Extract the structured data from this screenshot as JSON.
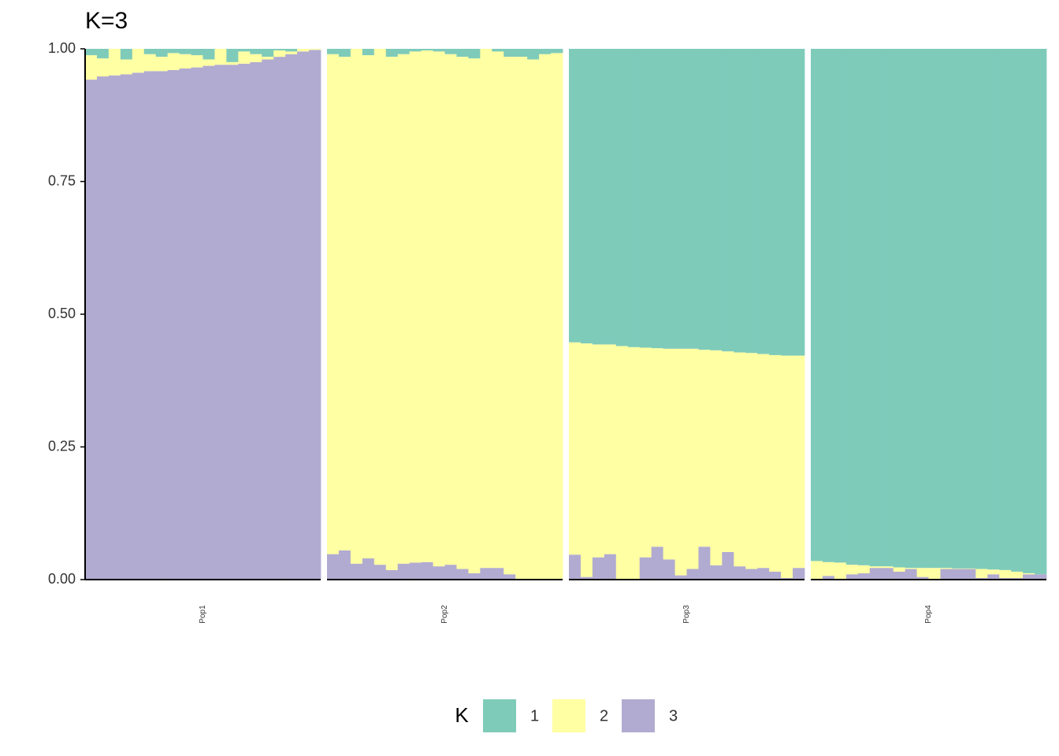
{
  "chart_data": {
    "type": "bar",
    "stacked": true,
    "title": "K=3",
    "legend_title": "K",
    "ylim": [
      0,
      1
    ],
    "yticks": [
      {
        "value": 0,
        "label": "0.00"
      },
      {
        "value": 0.25,
        "label": "0.25"
      },
      {
        "value": 0.5,
        "label": "0.50"
      },
      {
        "value": 0.75,
        "label": "0.75"
      },
      {
        "value": 1,
        "label": "1.00"
      }
    ],
    "series": [
      {
        "name": "1",
        "color": "#7fcbba"
      },
      {
        "name": "2",
        "color": "#ffffa3"
      },
      {
        "name": "3",
        "color": "#b1abd1"
      }
    ],
    "facets": [
      {
        "label": "Pop1",
        "series": [
          {
            "values": [
              0.012,
              0.018,
              0,
              0.02,
              0,
              0.01,
              0.015,
              0.008,
              0.01,
              0.012,
              0.02,
              0,
              0.025,
              0.005,
              0.01,
              0.015,
              0.003,
              0.005,
              0,
              0
            ]
          },
          {
            "values": [
              0.046,
              0.034,
              0.05,
              0.028,
              0.045,
              0.032,
              0.027,
              0.032,
              0.027,
              0.023,
              0.012,
              0.03,
              0.005,
              0.023,
              0.015,
              0.005,
              0.012,
              0.005,
              0.005,
              0.002
            ]
          },
          {
            "values": [
              0.942,
              0.948,
              0.95,
              0.952,
              0.955,
              0.958,
              0.958,
              0.96,
              0.963,
              0.965,
              0.968,
              0.97,
              0.97,
              0.972,
              0.975,
              0.98,
              0.985,
              0.99,
              0.995,
              0.998
            ]
          }
        ]
      },
      {
        "label": "Pop2",
        "series": [
          {
            "values": [
              0.01,
              0.015,
              0,
              0.012,
              0,
              0.015,
              0.01,
              0.005,
              0.003,
              0.005,
              0.01,
              0.015,
              0.018,
              0,
              0.005,
              0.015,
              0.015,
              0.02,
              0.01,
              0.008
            ]
          },
          {
            "values": [
              0.942,
              0.93,
              0.97,
              0.948,
              0.972,
              0.967,
              0.96,
              0.963,
              0.964,
              0.97,
              0.962,
              0.965,
              0.97,
              0.978,
              0.973,
              0.975,
              0.985,
              0.98,
              0.99,
              0.992
            ]
          },
          {
            "values": [
              0.048,
              0.055,
              0.03,
              0.04,
              0.028,
              0.018,
              0.03,
              0.032,
              0.033,
              0.025,
              0.028,
              0.02,
              0.012,
              0.022,
              0.022,
              0.01,
              0,
              0,
              0,
              0
            ]
          }
        ]
      },
      {
        "label": "Pop3",
        "series": [
          {
            "values": [
              0.553,
              0.555,
              0.557,
              0.557,
              0.56,
              0.562,
              0.563,
              0.564,
              0.565,
              0.565,
              0.565,
              0.567,
              0.568,
              0.57,
              0.572,
              0.573,
              0.575,
              0.577,
              0.578,
              0.578
            ]
          },
          {
            "values": [
              0.4,
              0.44,
              0.401,
              0.395,
              0.44,
              0.438,
              0.395,
              0.374,
              0.397,
              0.427,
              0.415,
              0.371,
              0.405,
              0.378,
              0.403,
              0.407,
              0.403,
              0.408,
              0.419,
              0.4
            ]
          },
          {
            "values": [
              0.047,
              0.005,
              0.042,
              0.048,
              0,
              0,
              0.042,
              0.062,
              0.038,
              0.008,
              0.02,
              0.062,
              0.027,
              0.052,
              0.025,
              0.02,
              0.022,
              0.015,
              0.003,
              0.022
            ]
          }
        ]
      },
      {
        "label": "Pop4",
        "series": [
          {
            "values": [
              0.965,
              0.967,
              0.968,
              0.972,
              0.973,
              0.975,
              0.975,
              0.977,
              0.978,
              0.978,
              0.978,
              0.978,
              0.979,
              0.979,
              0.98,
              0.981,
              0.982,
              0.985,
              0.988,
              0.99
            ]
          },
          {
            "values": [
              0.034,
              0.026,
              0.031,
              0.018,
              0.015,
              0.003,
              0.003,
              0.008,
              0.002,
              0.017,
              0.021,
              0.002,
              0.001,
              0.001,
              0.017,
              0.009,
              0.015,
              0.012,
              0.002,
              0
            ]
          },
          {
            "values": [
              0.001,
              0.007,
              0.001,
              0.01,
              0.012,
              0.022,
              0.022,
              0.015,
              0.02,
              0.005,
              0.001,
              0.02,
              0.02,
              0.02,
              0.003,
              0.01,
              0.003,
              0.003,
              0.01,
              0.01
            ]
          }
        ]
      }
    ]
  }
}
